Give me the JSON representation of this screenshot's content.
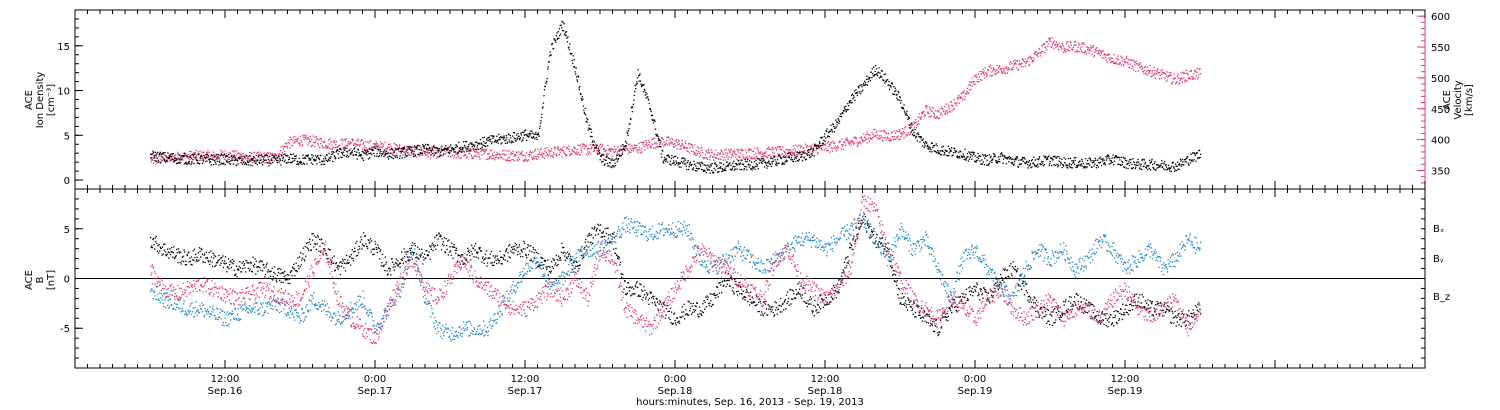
{
  "chart_data": [
    {
      "type": "scatter",
      "panel": "top",
      "ylabel_lines": [
        "ACE",
        "Ion Density",
        "[cm⁻³]"
      ],
      "ylim": [
        -1,
        19
      ],
      "yticks": [
        0,
        5,
        10,
        15
      ],
      "y2label_lines": [
        "ACE",
        "Velocity",
        "[km/s]"
      ],
      "y2lim": [
        320,
        610
      ],
      "y2ticks": [
        350,
        400,
        450,
        500,
        550,
        600
      ],
      "series": [
        {
          "id": "density",
          "axis": "left",
          "color": "#000000",
          "x": [
            6,
            7,
            8,
            9,
            10,
            11,
            12,
            13,
            14,
            15,
            16,
            17,
            18,
            19,
            20,
            21,
            22,
            23,
            24,
            25,
            26,
            27,
            28,
            29,
            30,
            31,
            32,
            33,
            34,
            35,
            36,
            37,
            38,
            39,
            40,
            41,
            42,
            43,
            44,
            45,
            46,
            47,
            48,
            49,
            50,
            51,
            52,
            53,
            54,
            55,
            56,
            57,
            58,
            59,
            60,
            61,
            62,
            63,
            64,
            65,
            66,
            67,
            68,
            69,
            70,
            71,
            72,
            73,
            74,
            75,
            76,
            77,
            78,
            79,
            80,
            81,
            82,
            83,
            84,
            85,
            86,
            87,
            88,
            89,
            90
          ],
          "y": [
            2.8,
            2.6,
            2.5,
            2.4,
            2.4,
            2.3,
            2.4,
            2.2,
            2.2,
            2.3,
            2.2,
            2.5,
            2.3,
            2.4,
            2.3,
            3.0,
            3.2,
            2.8,
            3.3,
            3.0,
            3.1,
            3.3,
            3.5,
            3.2,
            3.5,
            3.8,
            4.0,
            4.4,
            4.6,
            4.8,
            5.1,
            4.8,
            14.5,
            17.5,
            12.5,
            6.0,
            2.5,
            1.8,
            4.0,
            12.0,
            8.0,
            2.5,
            2.2,
            1.8,
            1.5,
            1.4,
            1.5,
            1.7,
            1.8,
            1.9,
            2.2,
            2.5,
            2.7,
            3.2,
            5.0,
            6.5,
            9.0,
            10.5,
            12.5,
            11.0,
            9.0,
            5.5,
            4.0,
            3.5,
            3.2,
            3.0,
            2.5,
            2.3,
            2.6,
            2.2,
            2.0,
            2.1,
            2.3,
            2.0,
            2.0,
            1.9,
            2.1,
            2.4,
            2.0,
            1.8,
            1.8,
            1.7,
            1.6,
            2.3,
            3.0
          ]
        },
        {
          "id": "velocity",
          "axis": "right",
          "color": "#e63b66",
          "x": [
            6,
            7,
            8,
            9,
            10,
            11,
            12,
            13,
            14,
            15,
            16,
            17,
            18,
            19,
            20,
            21,
            22,
            23,
            24,
            25,
            26,
            27,
            28,
            29,
            30,
            31,
            32,
            33,
            34,
            35,
            36,
            37,
            38,
            39,
            40,
            41,
            42,
            43,
            44,
            45,
            46,
            47,
            48,
            49,
            50,
            51,
            52,
            53,
            54,
            55,
            56,
            57,
            58,
            59,
            60,
            61,
            62,
            63,
            64,
            65,
            66,
            67,
            68,
            69,
            70,
            71,
            72,
            73,
            74,
            75,
            76,
            77,
            78,
            79,
            80,
            81,
            82,
            83,
            84,
            85,
            86,
            87,
            88,
            89,
            90
          ],
          "y": [
            368,
            370,
            372,
            374,
            375,
            373,
            376,
            374,
            372,
            372,
            372,
            395,
            400,
            398,
            395,
            393,
            395,
            392,
            390,
            388,
            385,
            382,
            380,
            380,
            380,
            378,
            378,
            378,
            376,
            375,
            375,
            378,
            380,
            382,
            385,
            385,
            385,
            382,
            385,
            387,
            395,
            398,
            395,
            388,
            380,
            376,
            377,
            378,
            379,
            380,
            380,
            382,
            384,
            386,
            388,
            392,
            396,
            402,
            410,
            406,
            410,
            420,
            448,
            442,
            455,
            470,
            500,
            512,
            515,
            520,
            525,
            540,
            560,
            550,
            552,
            548,
            540,
            532,
            528,
            518,
            512,
            505,
            498,
            505,
            508
          ]
        }
      ]
    },
    {
      "type": "scatter",
      "panel": "bottom",
      "ylabel_lines": [
        "ACE",
        "B",
        "[nT]"
      ],
      "ylim": [
        -9,
        9
      ],
      "yticks": [
        -5,
        0,
        5
      ],
      "zero_line": true,
      "legend": [
        {
          "label": "Bₓ",
          "color": "#000000"
        },
        {
          "label": "Bᵧ",
          "color": "#1a87d8"
        },
        {
          "label": "B_z",
          "color": "#e63b66"
        }
      ],
      "series": [
        {
          "id": "bx",
          "name": "Bₓ",
          "color": "#000000",
          "x": [
            6,
            7,
            8,
            9,
            10,
            11,
            12,
            13,
            14,
            15,
            16,
            17,
            18,
            19,
            20,
            21,
            22,
            23,
            24,
            25,
            26,
            27,
            28,
            29,
            30,
            31,
            32,
            33,
            34,
            35,
            36,
            37,
            38,
            39,
            40,
            41,
            42,
            43,
            44,
            45,
            46,
            47,
            48,
            49,
            50,
            51,
            52,
            53,
            54,
            55,
            56,
            57,
            58,
            59,
            60,
            61,
            62,
            63,
            64,
            65,
            66,
            67,
            68,
            69,
            70,
            71,
            72,
            73,
            74,
            75,
            76,
            77,
            78,
            79,
            80,
            81,
            82,
            83,
            84,
            85,
            86,
            87,
            88,
            89,
            90
          ],
          "y": [
            4,
            3,
            2.5,
            2,
            2.5,
            2,
            1.5,
            1,
            1.5,
            1,
            0.5,
            0,
            2,
            4,
            3,
            1,
            2,
            4,
            3,
            1,
            2,
            3,
            2,
            4,
            3,
            2,
            3,
            2,
            2,
            3,
            3,
            2,
            1,
            3,
            1,
            4,
            5,
            4,
            -1,
            -1,
            -2,
            -3,
            -4,
            -3,
            -3,
            -2,
            0,
            -1,
            -2,
            -3,
            -3,
            -2,
            -1,
            -3,
            -2,
            -1,
            3,
            6,
            4,
            3,
            -2,
            -3,
            -4,
            -5,
            -3,
            -2,
            -1,
            -2,
            0,
            1,
            -1,
            -3,
            -4,
            -3,
            -2,
            -3,
            -4,
            -4,
            -3,
            -2,
            -3,
            -3,
            -4,
            -4,
            -3
          ]
        },
        {
          "id": "by",
          "name": "Bᵧ",
          "color": "#1a87d8",
          "x": [
            6,
            7,
            8,
            9,
            10,
            11,
            12,
            13,
            14,
            15,
            16,
            17,
            18,
            19,
            20,
            21,
            22,
            23,
            24,
            25,
            26,
            27,
            28,
            29,
            30,
            31,
            32,
            33,
            34,
            35,
            36,
            37,
            38,
            39,
            40,
            41,
            42,
            43,
            44,
            45,
            46,
            47,
            48,
            49,
            50,
            51,
            52,
            53,
            54,
            55,
            56,
            57,
            58,
            59,
            60,
            61,
            62,
            63,
            64,
            65,
            66,
            67,
            68,
            69,
            70,
            71,
            72,
            73,
            74,
            75,
            76,
            77,
            78,
            79,
            80,
            81,
            82,
            83,
            84,
            85,
            86,
            87,
            88,
            89,
            90
          ],
          "y": [
            -1,
            -2,
            -2.5,
            -3,
            -3,
            -3.5,
            -4,
            -3.5,
            -3,
            -3,
            -2.5,
            -3,
            -4,
            -2,
            -3,
            -4,
            -3,
            -2,
            -5,
            -3,
            -1,
            3,
            -2,
            -5,
            -5.5,
            -5,
            -5,
            -5,
            -3,
            -1,
            1,
            2,
            -1,
            0,
            2,
            3,
            3,
            4,
            5.5,
            5,
            4.5,
            5,
            5,
            5,
            2,
            1,
            2,
            3,
            2,
            1,
            2,
            3,
            4,
            4,
            3,
            4,
            5,
            6,
            4,
            2,
            5,
            3,
            4,
            1,
            -2,
            2,
            3,
            1,
            -1,
            -2,
            1,
            3,
            2,
            3,
            1,
            2,
            4,
            3,
            1,
            2,
            3,
            1,
            2,
            4,
            3
          ]
        },
        {
          "id": "bz",
          "name": "B_z",
          "color": "#e63b66",
          "x": [
            6,
            7,
            8,
            9,
            10,
            11,
            12,
            13,
            14,
            15,
            16,
            17,
            18,
            19,
            20,
            21,
            22,
            23,
            24,
            25,
            26,
            27,
            28,
            29,
            30,
            31,
            32,
            33,
            34,
            35,
            36,
            37,
            38,
            39,
            40,
            41,
            42,
            43,
            44,
            45,
            46,
            47,
            48,
            49,
            50,
            51,
            52,
            53,
            54,
            55,
            56,
            57,
            58,
            59,
            60,
            61,
            62,
            63,
            64,
            65,
            66,
            67,
            68,
            69,
            70,
            71,
            72,
            73,
            74,
            75,
            76,
            77,
            78,
            79,
            80,
            81,
            82,
            83,
            84,
            85,
            86,
            87,
            88,
            89,
            90
          ],
          "y": [
            1,
            -1,
            -1.5,
            -1,
            -0.5,
            -1,
            -1.5,
            -2,
            -1.5,
            -1,
            -1.5,
            -2,
            -2,
            1,
            3,
            -2,
            -4,
            -5,
            -6,
            -3,
            0,
            2,
            -1,
            -2,
            0,
            2,
            0,
            -1,
            -2,
            -3,
            -3,
            -2,
            -1,
            -2,
            0,
            -2,
            3,
            2,
            -3,
            -4,
            -5,
            -3,
            -1,
            1,
            3,
            2,
            1,
            0,
            -1,
            -2,
            2,
            3,
            0,
            -1,
            -2,
            -1,
            1,
            8,
            7,
            3,
            0,
            -2,
            -3,
            -4,
            -2,
            -3,
            -4,
            -2,
            -1,
            -3,
            -4,
            -3,
            -2,
            -4,
            -3,
            -3,
            -4,
            -2,
            -1,
            -3,
            -4,
            -3,
            -2,
            -5,
            -3
          ]
        }
      ]
    }
  ],
  "x_axis": {
    "xlim": [
      0,
      108
    ],
    "ticks": [
      {
        "h": 12,
        "time": "12:00",
        "date": "Sep.16"
      },
      {
        "h": 24,
        "time": "0:00",
        "date": "Sep.17"
      },
      {
        "h": 36,
        "time": "12:00",
        "date": "Sep.17"
      },
      {
        "h": 48,
        "time": "0:00",
        "date": "Sep.18"
      },
      {
        "h": 60,
        "time": "12:00",
        "date": "Sep.18"
      },
      {
        "h": 72,
        "time": "0:00",
        "date": "Sep.19"
      },
      {
        "h": 84,
        "time": "12:00",
        "date": "Sep.19"
      }
    ],
    "title": "hours:minutes, Sep. 16, 2013 - Sep. 19, 2013"
  }
}
